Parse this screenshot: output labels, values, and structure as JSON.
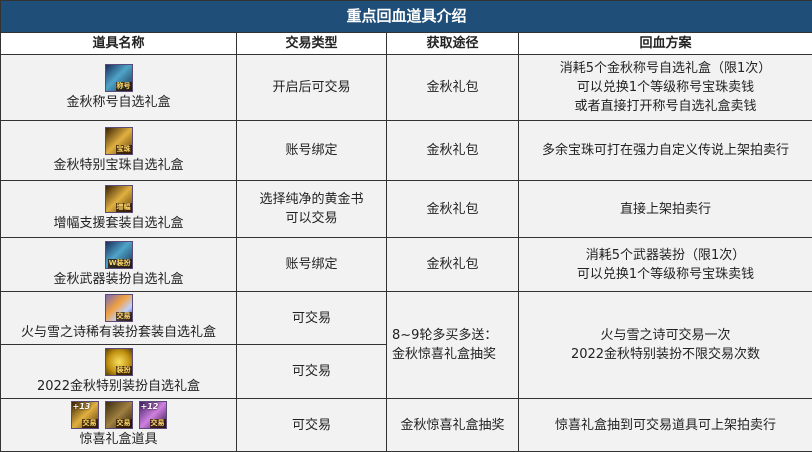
{
  "title": "重点回血道具介绍",
  "headers": [
    "道具名称",
    "交易类型",
    "获取途径",
    "回血方案"
  ],
  "rows": [
    {
      "name": "金秋称号自选礼盒",
      "icons": [
        {
          "icon": "title-box-icon",
          "tag": "称号"
        }
      ],
      "trade": "开启后可交易",
      "source": "金秋礼包",
      "plan": [
        "消耗5个金秋称号自选礼盒（限1次）",
        "可以兑换1个等级称号宝珠卖钱",
        "或者直接打开称号自选礼盒卖钱"
      ]
    },
    {
      "name": "金秋特别宝珠自选礼盒",
      "icons": [
        {
          "icon": "orb-box-icon",
          "tag": "宝珠"
        }
      ],
      "trade": "账号绑定",
      "source": "金秋礼包",
      "plan": [
        "多余宝珠可打在强力自定义传说上架拍卖行"
      ]
    },
    {
      "name": "增幅支援套装自选礼盒",
      "icons": [
        {
          "icon": "amplify-box-icon",
          "tag": "增幅"
        }
      ],
      "trade": [
        "选择纯净的黄金书",
        "可以交易"
      ],
      "source": "金秋礼包",
      "plan": [
        "直接上架拍卖行"
      ]
    },
    {
      "name": "金秋武器装扮自选礼盒",
      "icons": [
        {
          "icon": "weapon-avatar-box-icon",
          "tag": "W装扮"
        }
      ],
      "trade": "账号绑定",
      "source": "金秋礼包",
      "plan": [
        "消耗5个武器装扮（限1次）",
        "可以兑换1个等级称号宝珠卖钱"
      ]
    },
    {
      "name": "火与雪之诗稀有装扮套装自选礼盒",
      "icons": [
        {
          "icon": "fire-snow-avatar-box-icon",
          "tag": "交易"
        }
      ],
      "trade": "可交易"
    },
    {
      "name": "2022金秋特别装扮自选礼盒",
      "icons": [
        {
          "icon": "special-avatar-box-icon",
          "tag": "装扮"
        }
      ],
      "trade": "可交易"
    },
    {
      "name": "惊喜礼盒道具",
      "icons": [
        {
          "icon": "plus13-card-icon",
          "tag": "交易",
          "plus": "+13"
        },
        {
          "icon": "item-icon",
          "tag": "交易"
        },
        {
          "icon": "plus12-card-icon",
          "tag": "交易",
          "plus": "+12"
        }
      ],
      "trade": "可交易",
      "source": "金秋惊喜礼盒抽奖",
      "plan": [
        "惊喜礼盒抽到可交易道具可上架拍卖行"
      ]
    }
  ],
  "merged": {
    "source": [
      "8~9轮多买多送：",
      "金秋惊喜礼盒抽奖"
    ],
    "plan": [
      "火与雪之诗可交易一次",
      "2022金秋特别装扮不限交易次数"
    ]
  }
}
